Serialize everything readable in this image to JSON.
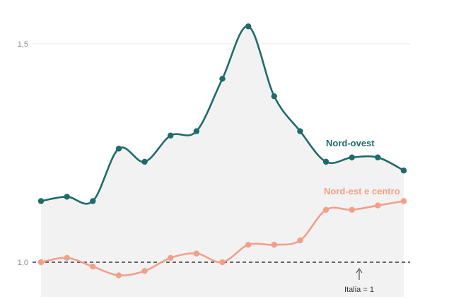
{
  "chart_data": {
    "type": "line",
    "ylim": [
      0.96,
      1.57
    ],
    "yticks": [
      {
        "value": 1.5,
        "label": "1,5"
      },
      {
        "value": 1.0,
        "label": "1,0"
      }
    ],
    "grid": true,
    "series": [
      {
        "name": "Nord-ovest",
        "color": "#1f6b6b",
        "values": [
          1.14,
          1.15,
          1.14,
          1.26,
          1.23,
          1.29,
          1.3,
          1.42,
          1.54,
          1.38,
          1.3,
          1.23,
          1.24,
          1.24,
          1.21
        ]
      },
      {
        "name": "Nord-est e centro",
        "color": "#f0a08a",
        "values": [
          1.0,
          1.01,
          0.99,
          0.97,
          0.98,
          1.01,
          1.02,
          1.0,
          1.04,
          1.04,
          1.05,
          1.12,
          1.12,
          1.13,
          1.14
        ]
      }
    ],
    "area_color": "#f2f2f2",
    "reference_line": {
      "value": 1.0,
      "label": "Italia = 1",
      "style": "dashed",
      "color": "#333333"
    }
  }
}
